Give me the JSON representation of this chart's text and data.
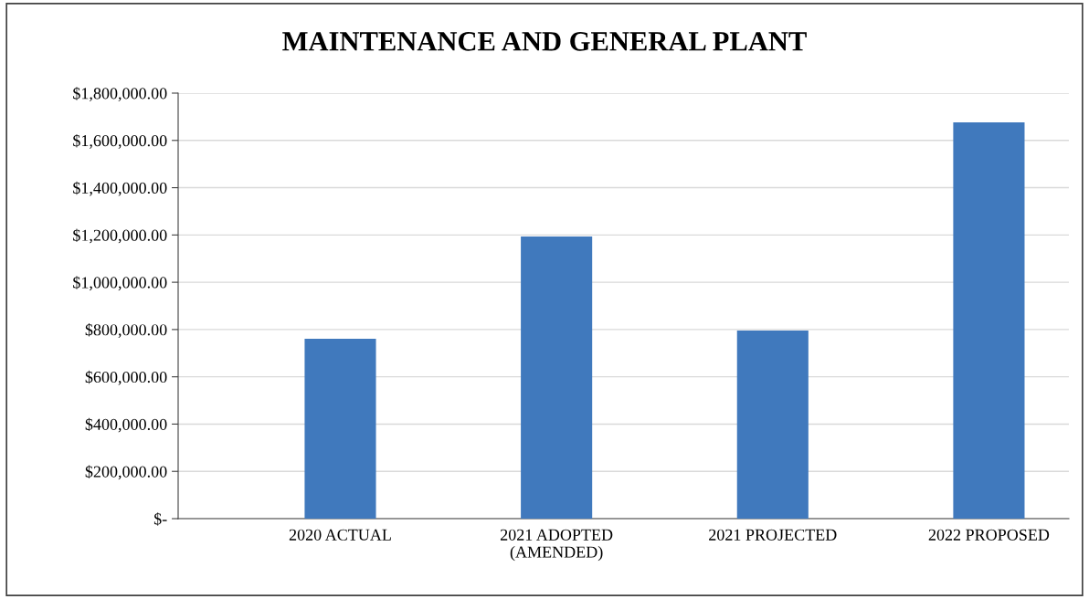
{
  "chart_data": {
    "type": "bar",
    "title": "MAINTENANCE AND GENERAL PLANT",
    "categories": [
      "2020 ACTUAL",
      "2021 ADOPTED\n(AMENDED)",
      "2021 PROJECTED",
      "2022 PROPOSED"
    ],
    "values": [
      761000,
      1194000,
      796000,
      1676000
    ],
    "color": "#4079bd",
    "ylim": [
      0,
      1800000
    ],
    "yticks": [
      {
        "value": 0,
        "label": "$-"
      },
      {
        "value": 200000,
        "label": "$200,000.00"
      },
      {
        "value": 400000,
        "label": "$400,000.00"
      },
      {
        "value": 600000,
        "label": "$600,000.00"
      },
      {
        "value": 800000,
        "label": "$800,000.00"
      },
      {
        "value": 1000000,
        "label": "$1,000,000.00"
      },
      {
        "value": 1200000,
        "label": "$1,200,000.00"
      },
      {
        "value": 1400000,
        "label": "$1,400,000.00"
      },
      {
        "value": 1600000,
        "label": "$1,600,000.00"
      },
      {
        "value": 1800000,
        "label": "$1,800,000.00"
      }
    ],
    "grid": "y",
    "legend": false
  }
}
